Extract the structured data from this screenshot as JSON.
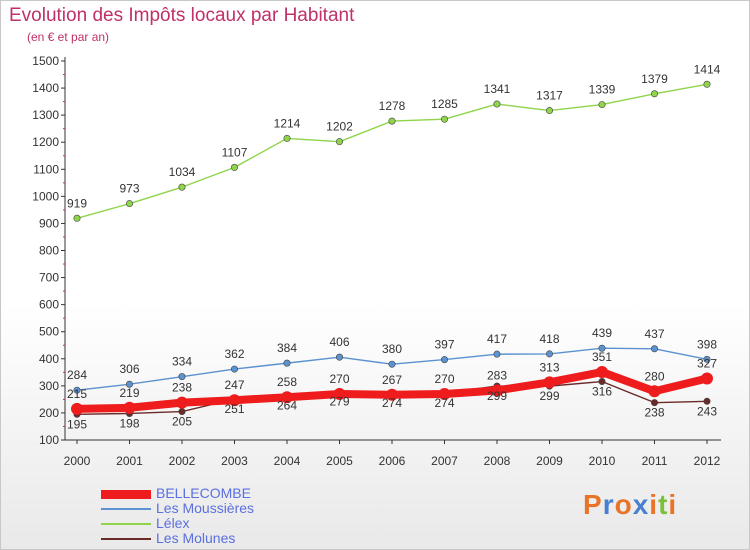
{
  "header": {
    "title": "Evolution des Impôts locaux par Habitant",
    "subtitle": "(en € et par an)"
  },
  "logo": {
    "text": "Proxiti",
    "colors": [
      "#e8742a",
      "#4a7fd0",
      "#e8742a",
      "#4a7fd0",
      "#e8742a",
      "#7bbf3a",
      "#e8742a"
    ]
  },
  "chart_data": {
    "type": "line",
    "title": "Evolution des Impôts locaux par Habitant",
    "subtitle": "(en € et par an)",
    "xlabel": "",
    "ylabel": "",
    "x": [
      2000,
      2001,
      2002,
      2003,
      2004,
      2005,
      2006,
      2007,
      2008,
      2009,
      2010,
      2011,
      2012
    ],
    "ylim": [
      100,
      1500
    ],
    "yticks": [
      100,
      200,
      300,
      400,
      500,
      600,
      700,
      800,
      900,
      1000,
      1100,
      1200,
      1300,
      1400,
      1500
    ],
    "grid": false,
    "legend_position": "bottom-left",
    "series": [
      {
        "name": "BELLECOMBE",
        "color": "#ee1c1c",
        "values": [
          215,
          219,
          238,
          247,
          258,
          270,
          267,
          270,
          283,
          313,
          351,
          280,
          327
        ]
      },
      {
        "name": "Les Moussières",
        "color": "#5b92cf",
        "values": [
          284,
          306,
          334,
          362,
          384,
          406,
          380,
          397,
          417,
          418,
          439,
          437,
          398
        ]
      },
      {
        "name": "Lélex",
        "color": "#8fd44a",
        "values": [
          919,
          973,
          1034,
          1107,
          1214,
          1202,
          1278,
          1285,
          1341,
          1317,
          1339,
          1379,
          1414
        ]
      },
      {
        "name": "Les Molunes",
        "color": "#6b2a2a",
        "values": [
          195,
          198,
          205,
          251,
          264,
          279,
          274,
          274,
          299,
          299,
          316,
          238,
          243
        ]
      }
    ]
  }
}
